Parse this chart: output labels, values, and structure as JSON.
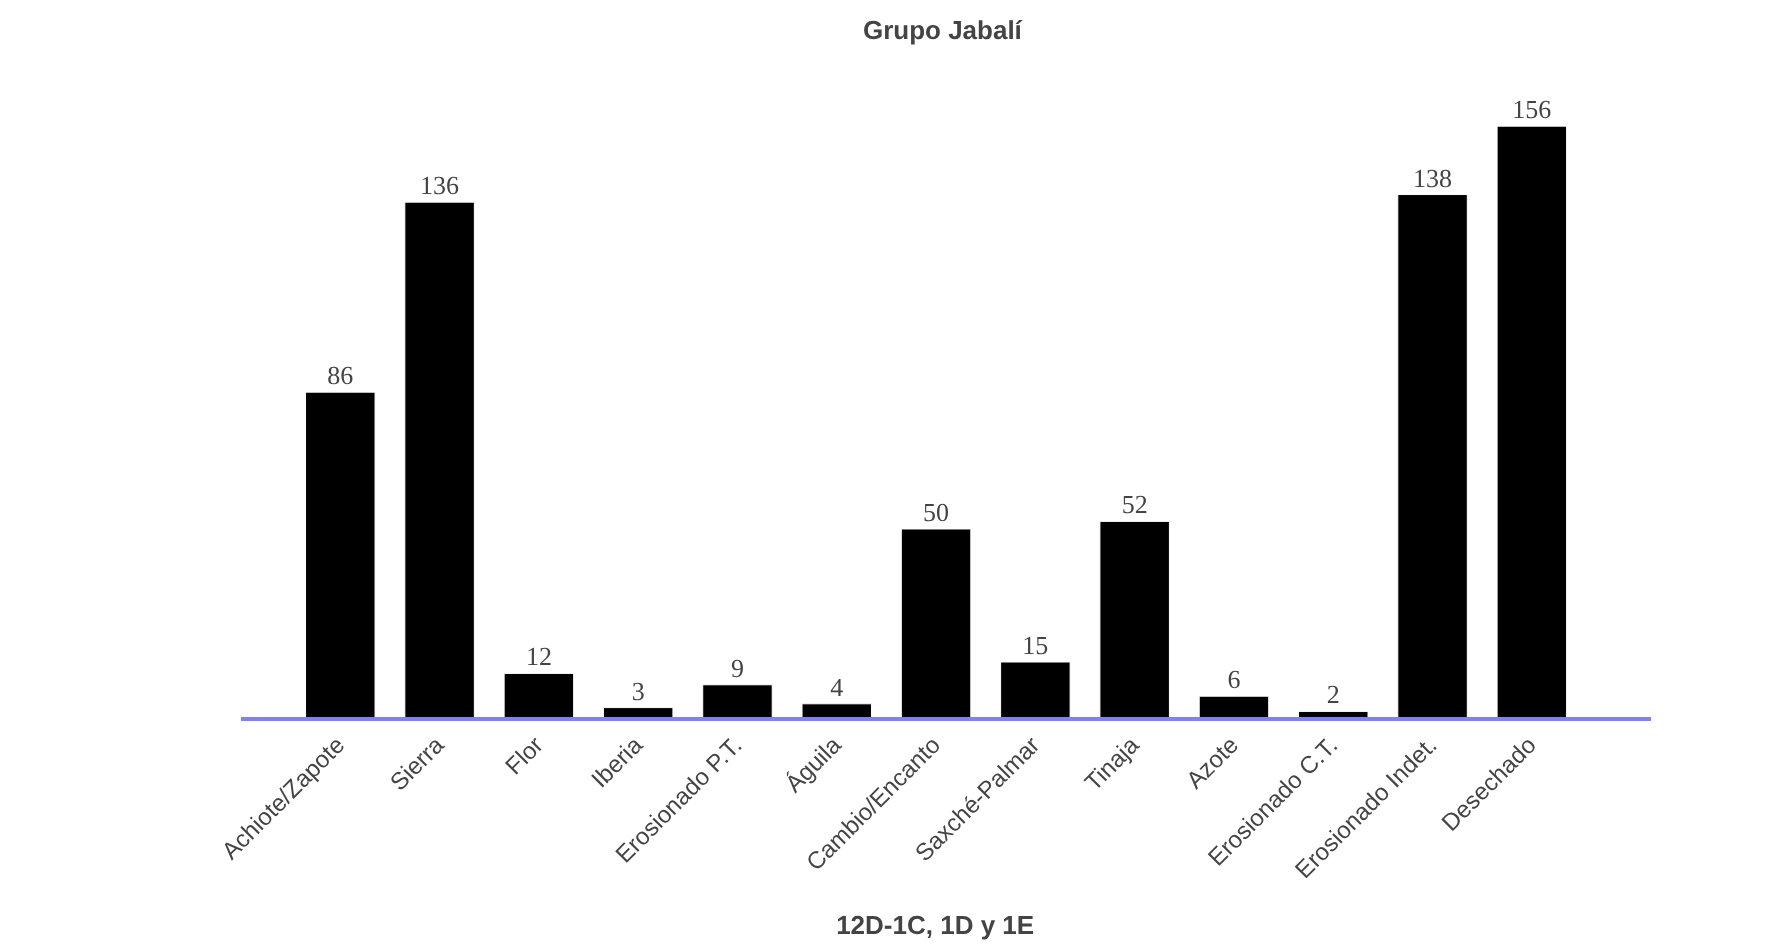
{
  "chart_data": {
    "type": "bar",
    "title": "Grupo  Jabalí",
    "xlabel": "12D-1C,  1D  y  1E",
    "categories": [
      "Achiote/Zapote",
      "Sierra",
      "Flor",
      "Iberia",
      "Erosionado P.T.",
      "Águila",
      "Cambio/Encanto",
      "Saxché-Palmar",
      "Tinaja",
      "Azote",
      "Erosionado C.T.",
      "Erosionado Indet.",
      "Desechado"
    ],
    "values": [
      86,
      136,
      12,
      3,
      9,
      4,
      50,
      15,
      52,
      6,
      2,
      138,
      156
    ],
    "color": "#000000",
    "data_labels": true
  }
}
